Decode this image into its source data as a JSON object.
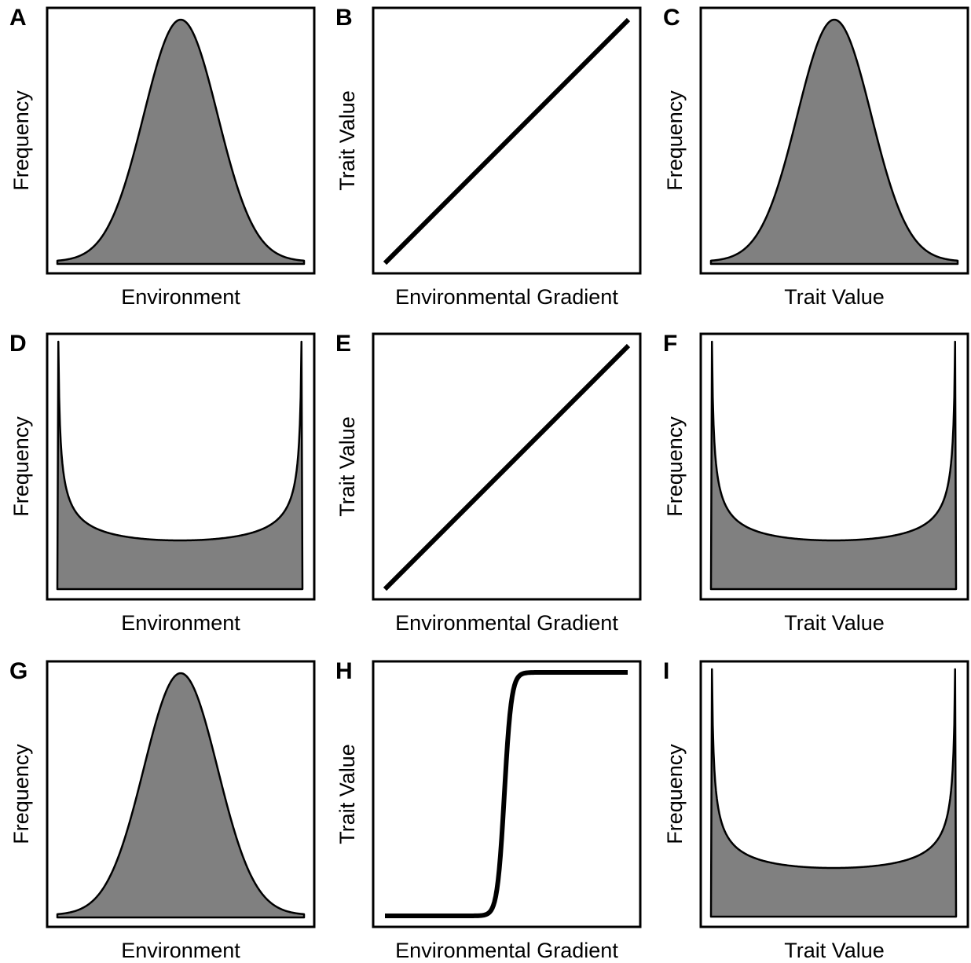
{
  "panels": [
    {
      "letter": "A",
      "ylabel": "Frequency",
      "xlabel": "Environment",
      "type": "normal"
    },
    {
      "letter": "B",
      "ylabel": "Trait Value",
      "xlabel": "Environmental Gradient",
      "type": "linear"
    },
    {
      "letter": "C",
      "ylabel": "Frequency",
      "xlabel": "Trait Value",
      "type": "normal"
    },
    {
      "letter": "D",
      "ylabel": "Frequency",
      "xlabel": "Environment",
      "type": "u-shape"
    },
    {
      "letter": "E",
      "ylabel": "Trait Value",
      "xlabel": "Environmental Gradient",
      "type": "linear"
    },
    {
      "letter": "F",
      "ylabel": "Frequency",
      "xlabel": "Trait Value",
      "type": "u-shape"
    },
    {
      "letter": "G",
      "ylabel": "Frequency",
      "xlabel": "Environment",
      "type": "normal"
    },
    {
      "letter": "H",
      "ylabel": "Trait Value",
      "xlabel": "Environmental Gradient",
      "type": "sigmoid"
    },
    {
      "letter": "I",
      "ylabel": "Frequency",
      "xlabel": "Trait Value",
      "type": "u-shape"
    }
  ]
}
